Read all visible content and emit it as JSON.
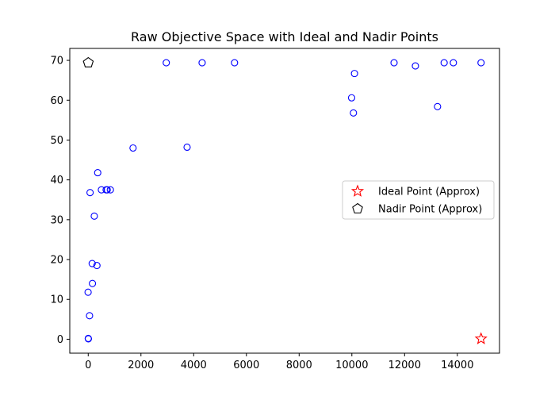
{
  "chart_data": {
    "type": "scatter",
    "title": "Raw Objective Space with Ideal and Nadir Points",
    "xlabel": "",
    "ylabel": "",
    "xlim": [
      -700,
      15600
    ],
    "ylim": [
      -3.5,
      73.0
    ],
    "x_ticks": [
      0,
      2000,
      4000,
      6000,
      8000,
      10000,
      12000,
      14000
    ],
    "y_ticks": [
      0,
      10,
      20,
      30,
      40,
      50,
      60,
      70
    ],
    "grid": false,
    "legend_position": "center-right",
    "series": [
      {
        "marker": "circle",
        "color": "#0000ff",
        "points": [
          [
            2,
            0.2
          ],
          [
            5,
            0.1
          ],
          [
            50,
            5.9
          ],
          [
            -5,
            11.8
          ],
          [
            160,
            14
          ],
          [
            150,
            19
          ],
          [
            330,
            18.5
          ],
          [
            230,
            30.9
          ],
          [
            70,
            36.8
          ],
          [
            360,
            41.8
          ],
          [
            500,
            37.5
          ],
          [
            680,
            37.5
          ],
          [
            720,
            37.5
          ],
          [
            840,
            37.5
          ],
          [
            1700,
            48
          ],
          [
            3750,
            48.2
          ],
          [
            2960,
            69.4
          ],
          [
            4320,
            69.4
          ],
          [
            5550,
            69.4
          ],
          [
            9990,
            60.6
          ],
          [
            10060,
            56.8
          ],
          [
            10100,
            66.7
          ],
          [
            11600,
            69.4
          ],
          [
            12410,
            68.6
          ],
          [
            13250,
            58.4
          ],
          [
            13500,
            69.4
          ],
          [
            13850,
            69.4
          ],
          [
            14900,
            69.4
          ]
        ]
      },
      {
        "name": "Ideal Point (Approx)",
        "marker": "star",
        "color": "#ff0000",
        "points": [
          [
            14900,
            0.1
          ]
        ]
      },
      {
        "name": "Nadir Point (Approx)",
        "marker": "pentagon",
        "color": "#000000",
        "points": [
          [
            2,
            69.4
          ]
        ]
      }
    ]
  }
}
